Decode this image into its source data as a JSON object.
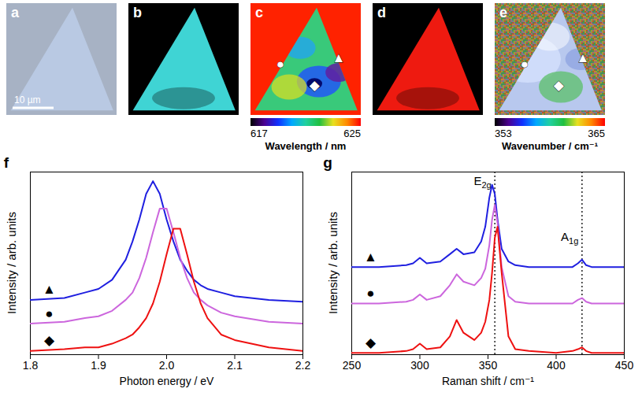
{
  "chart_data": [
    {
      "type": "image",
      "title": "a",
      "scale_bar": "10 µm",
      "colors": [
        "#a7b2c4",
        "#b9c9e3"
      ]
    },
    {
      "type": "map",
      "title": "b",
      "colors": [
        "#000000",
        "#3fd4d4"
      ]
    },
    {
      "type": "map",
      "title": "c",
      "colors": [
        "#ff2200",
        "#39c97a"
      ],
      "markers": [
        "●",
        "▲",
        "◆"
      ],
      "colorbar": {
        "range": [
          617,
          625
        ],
        "ticks": [
          617,
          625
        ],
        "label": "Wavelength / nm"
      }
    },
    {
      "type": "map",
      "title": "d",
      "colors": [
        "#000000",
        "#ee1a10"
      ]
    },
    {
      "type": "map",
      "title": "e",
      "colors": [
        "#7f8a4a",
        "#b8c8ee"
      ],
      "markers": [
        "●",
        "▲",
        "◆"
      ],
      "colorbar": {
        "range": [
          353,
          365
        ],
        "ticks": [
          353,
          365
        ],
        "label": "Wavenumber / cm⁻¹"
      }
    },
    {
      "type": "line",
      "title": "f",
      "x_label": "Photon energy / eV",
      "y_label": "Intensity / arb. units",
      "x": [
        1.8,
        1.85,
        1.88,
        1.9,
        1.92,
        1.94,
        1.95,
        1.96,
        1.97,
        1.98,
        1.99,
        2,
        2.01,
        2.02,
        2.03,
        2.04,
        2.05,
        2.06,
        2.08,
        2.1,
        2.15,
        2.2
      ],
      "series": [
        {
          "name": "▲",
          "color": "#1f1fe0",
          "values": [
            0.3,
            0.31,
            0.34,
            0.36,
            0.41,
            0.52,
            0.62,
            0.74,
            0.88,
            0.95,
            0.88,
            0.74,
            0.62,
            0.52,
            0.46,
            0.41,
            0.38,
            0.36,
            0.34,
            0.32,
            0.3,
            0.29
          ]
        },
        {
          "name": "●",
          "color": "#cc66dd",
          "values": [
            0.17,
            0.18,
            0.2,
            0.21,
            0.24,
            0.3,
            0.34,
            0.42,
            0.53,
            0.67,
            0.8,
            0.8,
            0.67,
            0.53,
            0.42,
            0.34,
            0.3,
            0.27,
            0.23,
            0.21,
            0.18,
            0.17
          ]
        },
        {
          "name": "◆",
          "color": "#ee1111",
          "values": [
            0.02,
            0.03,
            0.04,
            0.04,
            0.06,
            0.09,
            0.11,
            0.15,
            0.2,
            0.28,
            0.4,
            0.55,
            0.69,
            0.69,
            0.55,
            0.4,
            0.28,
            0.2,
            0.11,
            0.08,
            0.04,
            0.02
          ]
        }
      ],
      "xlim": [
        1.8,
        2.2
      ],
      "xticks": [
        1.8,
        1.9,
        {
          "value": 2,
          "label": "2.0"
        },
        2.1,
        2.2
      ],
      "ylim": [
        0,
        1
      ],
      "yticks": [],
      "tick_labels": "x"
    },
    {
      "type": "line",
      "title": "g",
      "x_label": "Raman shift / cm⁻¹",
      "y_label": "Intensity / arb. units",
      "x": [
        250,
        270,
        290,
        295,
        300,
        305,
        315,
        322,
        327,
        332,
        340,
        345,
        348,
        351,
        353,
        355,
        357,
        360,
        365,
        370,
        380,
        400,
        412,
        416,
        419,
        422,
        426,
        440,
        450
      ],
      "series": [
        {
          "name": "▲",
          "color": "#1f1fe0",
          "values": [
            0.48,
            0.48,
            0.49,
            0.5,
            0.53,
            0.5,
            0.51,
            0.55,
            0.58,
            0.55,
            0.56,
            0.62,
            0.7,
            0.86,
            0.93,
            0.88,
            0.74,
            0.58,
            0.51,
            0.49,
            0.48,
            0.48,
            0.48,
            0.5,
            0.52,
            0.49,
            0.48,
            0.48,
            0.48
          ]
        },
        {
          "name": "●",
          "color": "#cc66dd",
          "values": [
            0.28,
            0.28,
            0.29,
            0.3,
            0.33,
            0.3,
            0.32,
            0.38,
            0.44,
            0.4,
            0.38,
            0.42,
            0.47,
            0.6,
            0.74,
            0.82,
            0.72,
            0.48,
            0.32,
            0.29,
            0.28,
            0.28,
            0.28,
            0.3,
            0.31,
            0.29,
            0.28,
            0.28,
            0.28
          ]
        },
        {
          "name": "◆",
          "color": "#ee1111",
          "values": [
            0.01,
            0.01,
            0.02,
            0.03,
            0.06,
            0.03,
            0.04,
            0.1,
            0.19,
            0.12,
            0.08,
            0.12,
            0.18,
            0.3,
            0.45,
            0.64,
            0.7,
            0.45,
            0.1,
            0.03,
            0.02,
            0.01,
            0.02,
            0.03,
            0.04,
            0.02,
            0.01,
            0.01,
            0.01
          ]
        }
      ],
      "reference_lines": [
        {
          "x": 355,
          "label": "E2g"
        },
        {
          "x": 419,
          "label": "A1g"
        }
      ],
      "xlim": [
        250,
        450
      ],
      "xticks": [
        250,
        300,
        350,
        400,
        450
      ],
      "ylim": [
        0,
        1
      ],
      "yticks": [],
      "tick_labels": "x"
    }
  ]
}
